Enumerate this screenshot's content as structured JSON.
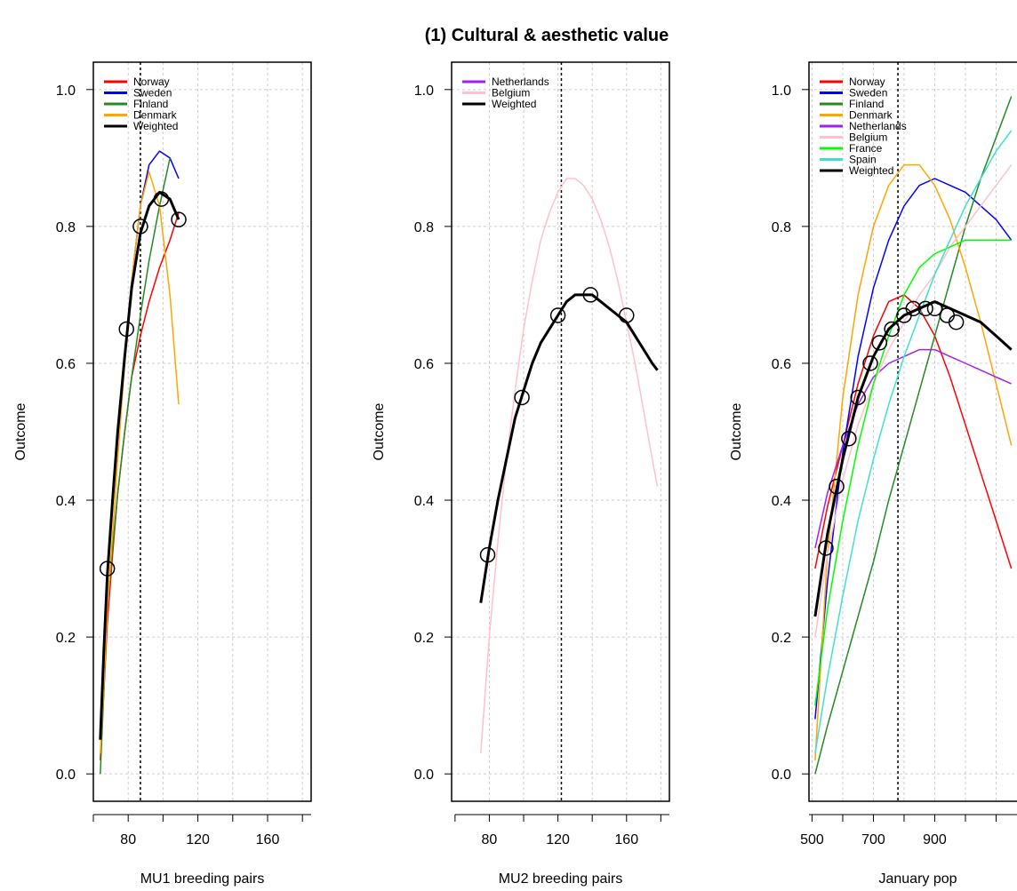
{
  "title": "(1) Cultural & aesthetic value",
  "chart_data": [
    {
      "type": "line",
      "xlabel": "MU1 breeding pairs",
      "ylabel": "Outcome",
      "xlim": [
        60,
        185
      ],
      "ylim": [
        -0.04,
        1.04
      ],
      "xticks": [
        80,
        120,
        160
      ],
      "yticks": [
        0.0,
        0.2,
        0.4,
        0.6,
        0.8,
        1.0
      ],
      "grid": true,
      "legend_position": "top-left",
      "reference_line_x": 87,
      "series": [
        {
          "name": "Norway",
          "color": "#ff0000",
          "x": [
            64,
            66,
            68,
            71,
            74,
            78,
            82,
            87,
            92,
            98,
            104,
            109
          ],
          "y": [
            0.02,
            0.12,
            0.22,
            0.32,
            0.41,
            0.5,
            0.58,
            0.64,
            0.69,
            0.74,
            0.78,
            0.82
          ]
        },
        {
          "name": "Sweden",
          "color": "#0000ff",
          "x": [
            64,
            66,
            68,
            71,
            74,
            78,
            82,
            87,
            92,
            98,
            104,
            109
          ],
          "y": [
            0.06,
            0.18,
            0.29,
            0.39,
            0.49,
            0.61,
            0.72,
            0.83,
            0.89,
            0.91,
            0.9,
            0.87
          ]
        },
        {
          "name": "Finland",
          "color": "#228b22",
          "x": [
            64,
            66,
            68,
            71,
            74,
            78,
            82,
            87,
            92,
            98,
            104
          ],
          "y": [
            0.0,
            0.12,
            0.24,
            0.33,
            0.41,
            0.5,
            0.58,
            0.67,
            0.75,
            0.83,
            0.9
          ]
        },
        {
          "name": "Denmark",
          "color": "#ffa500",
          "x": [
            64,
            66,
            68,
            71,
            74,
            78,
            82,
            87,
            92,
            98,
            104,
            109
          ],
          "y": [
            0.03,
            0.13,
            0.24,
            0.35,
            0.46,
            0.6,
            0.72,
            0.83,
            0.88,
            0.83,
            0.7,
            0.54
          ]
        },
        {
          "name": "Weighted",
          "color": "#000000",
          "x": [
            64,
            66,
            68,
            71,
            74,
            78,
            82,
            87,
            92,
            98,
            104,
            109
          ],
          "y": [
            0.05,
            0.18,
            0.29,
            0.4,
            0.5,
            0.61,
            0.71,
            0.79,
            0.83,
            0.85,
            0.84,
            0.81
          ]
        }
      ],
      "markers": {
        "x": [
          68,
          79,
          87,
          99,
          109
        ],
        "y": [
          0.3,
          0.65,
          0.8,
          0.84,
          0.81
        ]
      }
    },
    {
      "type": "line",
      "xlabel": "MU2 breeding pairs",
      "ylabel": "Outcome",
      "xlim": [
        58,
        185
      ],
      "ylim": [
        -0.04,
        1.04
      ],
      "xticks": [
        80,
        120,
        160
      ],
      "yticks": [
        0.0,
        0.2,
        0.4,
        0.6,
        0.8,
        1.0
      ],
      "grid": true,
      "legend_position": "top-left",
      "reference_line_x": 122,
      "series": [
        {
          "name": "Netherlands",
          "color": "#a020f0",
          "x": [
            75,
            80,
            85,
            90,
            95,
            100,
            105,
            110,
            115,
            120,
            125,
            130,
            135,
            140,
            145,
            150,
            155,
            160,
            165,
            170,
            175,
            178
          ],
          "y": [
            0.25,
            0.33,
            0.4,
            0.46,
            0.52,
            0.56,
            0.6,
            0.63,
            0.65,
            0.67,
            0.69,
            0.7,
            0.7,
            0.7,
            0.69,
            0.68,
            0.67,
            0.66,
            0.64,
            0.62,
            0.6,
            0.59
          ]
        },
        {
          "name": "Belgium",
          "color": "#ffc0cb",
          "x": [
            75,
            80,
            85,
            90,
            95,
            100,
            105,
            110,
            115,
            120,
            125,
            130,
            135,
            140,
            145,
            150,
            155,
            160,
            165,
            170,
            175,
            178
          ],
          "y": [
            0.03,
            0.2,
            0.34,
            0.46,
            0.56,
            0.65,
            0.72,
            0.78,
            0.82,
            0.85,
            0.87,
            0.87,
            0.86,
            0.84,
            0.81,
            0.77,
            0.72,
            0.66,
            0.6,
            0.53,
            0.46,
            0.42
          ]
        },
        {
          "name": "Weighted",
          "color": "#000000",
          "x": [
            75,
            80,
            85,
            90,
            95,
            100,
            105,
            110,
            115,
            120,
            125,
            130,
            135,
            140,
            145,
            150,
            155,
            160,
            165,
            170,
            175,
            178
          ],
          "y": [
            0.25,
            0.33,
            0.4,
            0.46,
            0.52,
            0.56,
            0.6,
            0.63,
            0.65,
            0.67,
            0.69,
            0.7,
            0.7,
            0.7,
            0.69,
            0.68,
            0.67,
            0.66,
            0.64,
            0.62,
            0.6,
            0.59
          ]
        }
      ],
      "markers": {
        "x": [
          79,
          99,
          120,
          139,
          160
        ],
        "y": [
          0.32,
          0.55,
          0.67,
          0.7,
          0.67
        ]
      }
    },
    {
      "type": "line",
      "xlabel": "January pop",
      "ylabel": "Outcome",
      "xlim": [
        490,
        1200
      ],
      "ylim": [
        -0.04,
        1.04
      ],
      "xticks": [
        500,
        700,
        900
      ],
      "yticks": [
        0.0,
        0.2,
        0.4,
        0.6,
        0.8,
        1.0
      ],
      "grid": true,
      "legend_position": "top-left",
      "reference_line_x": 780,
      "series": [
        {
          "name": "Norway",
          "color": "#ff0000",
          "x": [
            510,
            550,
            600,
            650,
            700,
            750,
            800,
            850,
            900,
            950,
            1000,
            1050,
            1100,
            1150
          ],
          "y": [
            0.3,
            0.39,
            0.48,
            0.57,
            0.64,
            0.69,
            0.7,
            0.68,
            0.64,
            0.58,
            0.51,
            0.44,
            0.37,
            0.3
          ]
        },
        {
          "name": "Sweden",
          "color": "#0000ff",
          "x": [
            510,
            550,
            600,
            650,
            700,
            750,
            800,
            850,
            900,
            950,
            1000,
            1050,
            1100,
            1150
          ],
          "y": [
            0.08,
            0.28,
            0.47,
            0.61,
            0.71,
            0.78,
            0.83,
            0.86,
            0.87,
            0.86,
            0.85,
            0.83,
            0.81,
            0.78
          ]
        },
        {
          "name": "Finland",
          "color": "#228b22",
          "x": [
            510,
            550,
            600,
            650,
            700,
            750,
            800,
            850,
            900,
            950,
            1000,
            1050,
            1100,
            1150
          ],
          "y": [
            0.0,
            0.07,
            0.15,
            0.23,
            0.31,
            0.4,
            0.48,
            0.56,
            0.64,
            0.72,
            0.8,
            0.87,
            0.93,
            0.99
          ]
        },
        {
          "name": "Denmark",
          "color": "#ffa500",
          "x": [
            510,
            550,
            600,
            650,
            700,
            750,
            800,
            850,
            900,
            950,
            1000,
            1050,
            1100,
            1150
          ],
          "y": [
            0.02,
            0.32,
            0.55,
            0.7,
            0.8,
            0.86,
            0.89,
            0.89,
            0.86,
            0.81,
            0.74,
            0.66,
            0.57,
            0.48
          ]
        },
        {
          "name": "Netherlands",
          "color": "#a020f0",
          "x": [
            510,
            550,
            600,
            650,
            700,
            750,
            800,
            850,
            900,
            950,
            1000,
            1050,
            1100,
            1150
          ],
          "y": [
            0.33,
            0.41,
            0.48,
            0.54,
            0.58,
            0.6,
            0.61,
            0.62,
            0.62,
            0.61,
            0.6,
            0.59,
            0.58,
            0.57
          ]
        },
        {
          "name": "Belgium",
          "color": "#ffc0cb",
          "x": [
            510,
            550,
            600,
            650,
            700,
            750,
            800,
            850,
            900,
            950,
            1000,
            1050,
            1100,
            1150
          ],
          "y": [
            0.2,
            0.32,
            0.43,
            0.51,
            0.57,
            0.62,
            0.66,
            0.7,
            0.73,
            0.77,
            0.8,
            0.83,
            0.86,
            0.89
          ]
        },
        {
          "name": "France",
          "color": "#00ff00",
          "x": [
            510,
            550,
            600,
            650,
            700,
            750,
            800,
            850,
            900,
            950,
            1000,
            1050,
            1100,
            1150
          ],
          "y": [
            0.1,
            0.24,
            0.37,
            0.48,
            0.57,
            0.64,
            0.7,
            0.74,
            0.76,
            0.77,
            0.78,
            0.78,
            0.78,
            0.78
          ]
        },
        {
          "name": "Spain",
          "color": "#40e0d0",
          "x": [
            510,
            550,
            600,
            650,
            700,
            750,
            800,
            850,
            900,
            950,
            1000,
            1050,
            1100,
            1150
          ],
          "y": [
            0.03,
            0.14,
            0.26,
            0.37,
            0.46,
            0.54,
            0.61,
            0.67,
            0.73,
            0.78,
            0.83,
            0.87,
            0.91,
            0.94
          ]
        },
        {
          "name": "Weighted",
          "color": "#000000",
          "x": [
            510,
            550,
            600,
            650,
            700,
            750,
            800,
            850,
            900,
            950,
            1000,
            1050,
            1100,
            1150
          ],
          "y": [
            0.23,
            0.35,
            0.46,
            0.55,
            0.61,
            0.65,
            0.67,
            0.68,
            0.69,
            0.68,
            0.67,
            0.66,
            0.64,
            0.62
          ]
        }
      ],
      "markers": {
        "x": [
          545,
          580,
          620,
          650,
          690,
          720,
          760,
          800,
          830,
          870,
          900,
          940,
          970
        ],
        "y": [
          0.33,
          0.42,
          0.49,
          0.55,
          0.6,
          0.63,
          0.65,
          0.67,
          0.68,
          0.68,
          0.68,
          0.67,
          0.66
        ]
      }
    }
  ]
}
